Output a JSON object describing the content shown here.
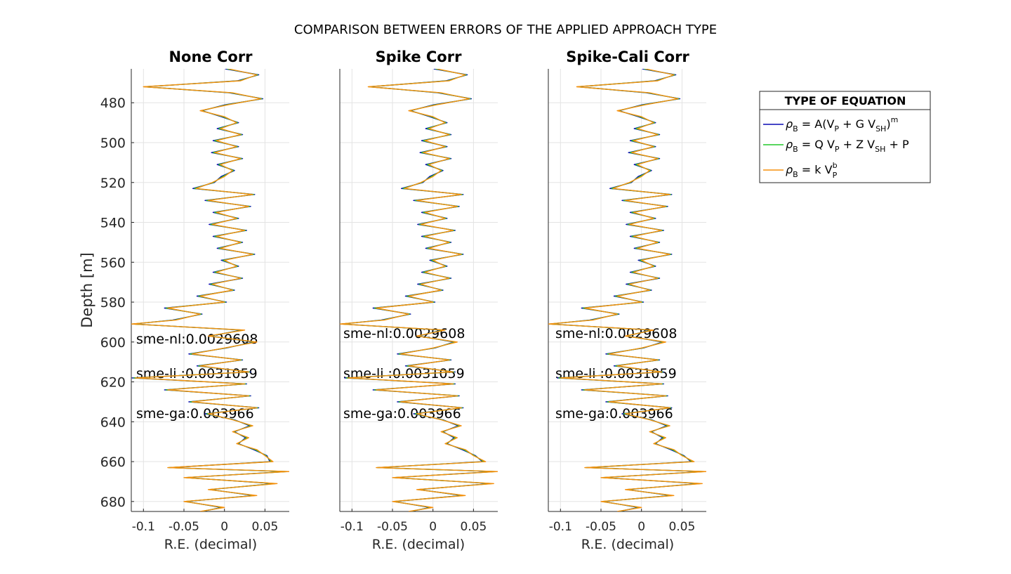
{
  "figure_title": "COMPARISON BETWEEN ERRORS OF THE APPLIED APPROACH TYPE",
  "ylabel": "Depth [m]",
  "xlabel": "R.E. (decimal)",
  "colors": {
    "nl": "#0a0ab4",
    "li": "#22c82a",
    "ga": "#f5900f",
    "grid": "#e3e3e3",
    "axis": "#262626"
  },
  "legend": {
    "title": "TYPE OF EQUATION",
    "items": [
      {
        "series": "nl",
        "label": "ρB = A(VP + G VSH)m"
      },
      {
        "series": "li",
        "label": "ρB = Q VP + Z VSH + P"
      },
      {
        "series": "ga",
        "label": "ρB = k VPb"
      }
    ]
  },
  "chart_data": [
    {
      "type": "line",
      "title": "None Corr",
      "xlabel": "R.E. (decimal)",
      "ylabel": "Depth [m]",
      "xlim": [
        -0.115,
        0.08
      ],
      "ylim": [
        685,
        463
      ],
      "y_reversed": true,
      "xticks": [
        "-0.1",
        "-0.05",
        "0",
        "0.05"
      ],
      "yticks": [
        "480",
        "500",
        "520",
        "540",
        "560",
        "580",
        "600",
        "620",
        "640",
        "660",
        "680"
      ],
      "grid": true,
      "annotations": [
        "sme-nl:0.0029608",
        "sme-li :0.0031059",
        "sme-ga:0.003966"
      ],
      "series_names": [
        "nl",
        "li",
        "ga"
      ],
      "depth": [
        463,
        466,
        469,
        472,
        475,
        478,
        481,
        484,
        487,
        490,
        493,
        496,
        499,
        502,
        505,
        508,
        511,
        514,
        517,
        520,
        523,
        526,
        529,
        532,
        535,
        538,
        541,
        544,
        547,
        550,
        553,
        556,
        559,
        562,
        565,
        568,
        571,
        574,
        577,
        580,
        583,
        586,
        589,
        591,
        594,
        597,
        600,
        603,
        606,
        609,
        612,
        615,
        618,
        621,
        624,
        627,
        630,
        633,
        636,
        639,
        642,
        645,
        648,
        651,
        654,
        657,
        660,
        663,
        665,
        668,
        671,
        674,
        677,
        680,
        683,
        685
      ],
      "re": [
        0.005,
        0.04,
        0.02,
        -0.1,
        0.01,
        0.045,
        0.005,
        -0.03,
        0.0,
        0.015,
        -0.005,
        0.02,
        -0.01,
        0.015,
        -0.012,
        0.02,
        -0.005,
        0.01,
        0.0,
        -0.015,
        -0.035,
        0.035,
        -0.02,
        0.03,
        -0.01,
        0.015,
        -0.015,
        0.025,
        -0.01,
        0.02,
        -0.005,
        0.035,
        0.0,
        0.015,
        -0.01,
        0.02,
        -0.015,
        0.01,
        -0.03,
        0.0,
        -0.07,
        -0.03,
        -0.06,
        -0.115,
        0.025,
        -0.02,
        0.04,
        0.0,
        -0.04,
        0.02,
        -0.03,
        0.03,
        -0.11,
        0.025,
        -0.07,
        0.03,
        -0.04,
        0.04,
        -0.02,
        0.01,
        0.035,
        0.01,
        0.03,
        0.015,
        0.04,
        0.05,
        0.06,
        -0.07,
        0.08,
        -0.05,
        0.065,
        -0.02,
        0.04,
        -0.05,
        0.0,
        -0.03
      ],
      "offsets": {
        "nl": -0.004,
        "li": -0.002,
        "ga": 0.0
      }
    },
    {
      "type": "line",
      "title": "Spike Corr",
      "xlabel": "R.E. (decimal)",
      "ylabel": "",
      "xlim": [
        -0.115,
        0.08
      ],
      "ylim": [
        685,
        463
      ],
      "y_reversed": true,
      "xticks": [
        "-0.1",
        "-0.05",
        "0",
        "0.05"
      ],
      "yticks": [],
      "grid": true,
      "annotations": [
        "sme-nl:0.0029608",
        "sme-li :0.0031059",
        "sme-ga:0.003966"
      ],
      "series_names": [
        "nl",
        "li",
        "ga"
      ],
      "depth": [
        463,
        466,
        469,
        472,
        475,
        478,
        481,
        484,
        487,
        490,
        493,
        496,
        499,
        502,
        505,
        508,
        511,
        514,
        517,
        520,
        523,
        526,
        529,
        532,
        535,
        538,
        541,
        544,
        547,
        550,
        553,
        556,
        559,
        562,
        565,
        568,
        571,
        574,
        577,
        580,
        583,
        586,
        589,
        591,
        594,
        597,
        600,
        603,
        606,
        609,
        612,
        615,
        618,
        621,
        624,
        627,
        630,
        633,
        636,
        639,
        642,
        645,
        648,
        651,
        654,
        657,
        660,
        663,
        665,
        668,
        671,
        674,
        677,
        680,
        683,
        685
      ],
      "re": [
        0.005,
        0.04,
        0.02,
        -0.08,
        0.01,
        0.045,
        0.005,
        -0.03,
        0.0,
        0.015,
        -0.005,
        0.02,
        -0.01,
        0.015,
        -0.012,
        0.02,
        -0.005,
        0.01,
        0.0,
        -0.015,
        -0.035,
        0.035,
        -0.02,
        0.03,
        -0.01,
        0.015,
        -0.015,
        0.025,
        -0.01,
        0.02,
        -0.005,
        0.035,
        0.0,
        0.015,
        -0.01,
        0.02,
        -0.015,
        0.01,
        -0.03,
        0.0,
        -0.07,
        -0.03,
        -0.06,
        -0.115,
        0.015,
        -0.02,
        0.03,
        0.0,
        -0.04,
        0.02,
        -0.03,
        0.025,
        -0.105,
        0.025,
        -0.07,
        0.03,
        -0.04,
        0.035,
        -0.02,
        0.01,
        0.035,
        0.01,
        0.03,
        0.015,
        0.04,
        0.05,
        0.065,
        -0.07,
        0.08,
        -0.05,
        0.075,
        -0.02,
        0.04,
        -0.05,
        0.0,
        -0.03
      ],
      "offsets": {
        "nl": -0.004,
        "li": -0.002,
        "ga": 0.0
      }
    },
    {
      "type": "line",
      "title": "Spike-Cali Corr",
      "xlabel": "R.E. (decimal)",
      "ylabel": "",
      "xlim": [
        -0.115,
        0.08
      ],
      "ylim": [
        685,
        463
      ],
      "y_reversed": true,
      "xticks": [
        "-0.1",
        "-0.05",
        "0",
        "0.05"
      ],
      "yticks": [],
      "grid": true,
      "annotations": [
        "sme-nl:0.0029608",
        "sme-li :0.0031059",
        "sme-ga:0.003966"
      ],
      "series_names": [
        "nl",
        "li",
        "ga"
      ],
      "depth": [
        463,
        466,
        469,
        472,
        475,
        478,
        481,
        484,
        487,
        490,
        493,
        496,
        499,
        502,
        505,
        508,
        511,
        514,
        517,
        520,
        523,
        526,
        529,
        532,
        535,
        538,
        541,
        544,
        547,
        550,
        553,
        556,
        559,
        562,
        565,
        568,
        571,
        574,
        577,
        580,
        583,
        586,
        589,
        591,
        594,
        597,
        600,
        603,
        606,
        609,
        612,
        615,
        618,
        621,
        624,
        627,
        630,
        633,
        636,
        639,
        642,
        645,
        648,
        651,
        654,
        657,
        660,
        663,
        665,
        668,
        671,
        674,
        677,
        680,
        683,
        685
      ],
      "re": [
        0.005,
        0.04,
        0.02,
        -0.08,
        0.01,
        0.045,
        0.005,
        -0.03,
        0.0,
        0.015,
        -0.005,
        0.02,
        -0.01,
        0.015,
        -0.012,
        0.02,
        -0.005,
        0.01,
        0.0,
        -0.015,
        -0.035,
        0.035,
        -0.02,
        0.03,
        -0.01,
        0.015,
        -0.015,
        0.025,
        -0.01,
        0.02,
        -0.005,
        0.035,
        0.0,
        0.015,
        -0.01,
        0.02,
        -0.015,
        0.01,
        -0.03,
        0.0,
        -0.07,
        -0.03,
        -0.06,
        -0.115,
        0.015,
        -0.02,
        0.03,
        0.0,
        -0.04,
        0.02,
        -0.03,
        0.025,
        -0.1,
        0.025,
        -0.07,
        0.03,
        -0.04,
        0.035,
        -0.02,
        0.01,
        0.035,
        0.01,
        0.03,
        0.015,
        0.04,
        0.05,
        0.065,
        -0.07,
        0.08,
        -0.05,
        0.075,
        -0.02,
        0.04,
        -0.05,
        0.0,
        -0.03
      ],
      "offsets": {
        "nl": -0.004,
        "li": -0.002,
        "ga": 0.0
      }
    }
  ]
}
